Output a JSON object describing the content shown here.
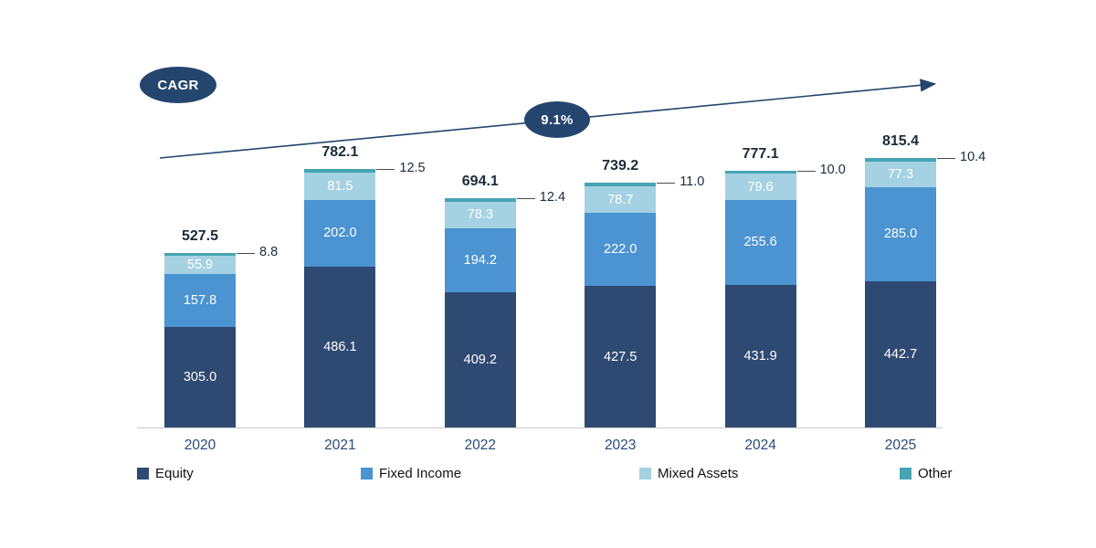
{
  "chart_data": {
    "type": "bar",
    "stacked": true,
    "title": "",
    "categories": [
      "2020",
      "2021",
      "2022",
      "2023",
      "2024",
      "2025"
    ],
    "series": [
      {
        "name": "Equity",
        "color": "#2e4a72",
        "values": [
          305.0,
          486.1,
          409.2,
          427.5,
          431.9,
          442.7
        ]
      },
      {
        "name": "Fixed Income",
        "color": "#4b93d1",
        "values": [
          157.8,
          202.0,
          194.2,
          222.0,
          255.6,
          285.0
        ]
      },
      {
        "name": "Mixed Assets",
        "color": "#a5d2e2",
        "values": [
          55.9,
          81.5,
          78.3,
          78.7,
          79.6,
          77.3
        ]
      },
      {
        "name": "Other",
        "color": "#47a4b3",
        "values": [
          8.8,
          12.5,
          12.4,
          11.0,
          10.0,
          10.4
        ]
      }
    ],
    "totals": [
      527.5,
      782.1,
      694.1,
      739.2,
      777.1,
      815.4
    ],
    "annotations": {
      "cagr_label": "CAGR",
      "cagr_value": "9.1%"
    },
    "legend": [
      "Equity",
      "Fixed Income",
      "Mixed Assets",
      "Other"
    ],
    "legend_position": "bottom",
    "grid": false,
    "value_axis_visible": false,
    "approx_value_range": [
      0,
      815.4
    ]
  }
}
